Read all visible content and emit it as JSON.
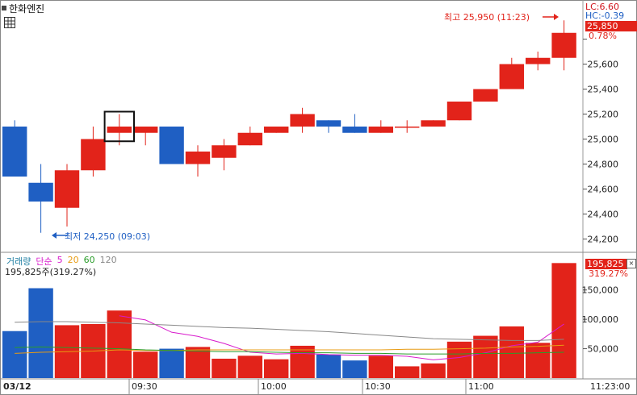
{
  "window": {
    "stock_name": "한화엔진",
    "lc_label": "LC:6.60",
    "hc_label": "HC:-0.39",
    "current_price": "25,850",
    "current_pct": "0.78%",
    "high_annotation": "최고 25,950 (11:23)",
    "low_annotation": "최저 24,250 (09:03)"
  },
  "volume_panel": {
    "legend": {
      "name": "거래량",
      "ma_label": "단순",
      "periods": [
        "5",
        "20",
        "60",
        "120"
      ]
    },
    "info": "195,825주(319.27%)",
    "current_volume": "195,825",
    "current_pct": "319.27%"
  },
  "time_axis": {
    "date": "03/12",
    "labels": [
      "09:30",
      "10:00",
      "10:30",
      "11:00"
    ],
    "current_time": "11:23:00"
  },
  "colors": {
    "up": "#e2231a",
    "down": "#1f5fc3",
    "ma5": "#d81bcc",
    "ma20": "#e89b12",
    "ma60": "#2a9d2a",
    "ma120": "#888888"
  },
  "chart_data": [
    {
      "type": "candlestick",
      "ylim": [
        24100,
        26100
      ],
      "yticks": [
        24200,
        24400,
        24600,
        24800,
        25000,
        25200,
        25400,
        25600,
        25800
      ],
      "ytick_labels": [
        "24,200",
        "24,400",
        "24,600",
        "24,800",
        "25,000",
        "25,200",
        "25,400",
        "25,600",
        "25,800"
      ],
      "candles": [
        {
          "o": 25100,
          "h": 25150,
          "l": 24700,
          "c": 24700
        },
        {
          "o": 24650,
          "h": 24800,
          "l": 24250,
          "c": 24500
        },
        {
          "o": 24450,
          "h": 24800,
          "l": 24300,
          "c": 24750
        },
        {
          "o": 24750,
          "h": 25100,
          "l": 24700,
          "c": 25000
        },
        {
          "o": 25050,
          "h": 25200,
          "l": 24950,
          "c": 25100
        },
        {
          "o": 25050,
          "h": 25100,
          "l": 24950,
          "c": 25100
        },
        {
          "o": 25100,
          "h": 25100,
          "l": 24800,
          "c": 24800
        },
        {
          "o": 24800,
          "h": 24950,
          "l": 24700,
          "c": 24900
        },
        {
          "o": 24850,
          "h": 25000,
          "l": 24750,
          "c": 24950
        },
        {
          "o": 24950,
          "h": 25100,
          "l": 24950,
          "c": 25050
        },
        {
          "o": 25050,
          "h": 25100,
          "l": 25050,
          "c": 25100
        },
        {
          "o": 25100,
          "h": 25250,
          "l": 25050,
          "c": 25200
        },
        {
          "o": 25150,
          "h": 25150,
          "l": 25050,
          "c": 25100
        },
        {
          "o": 25100,
          "h": 25200,
          "l": 25050,
          "c": 25050
        },
        {
          "o": 25050,
          "h": 25150,
          "l": 25050,
          "c": 25100
        },
        {
          "o": 25100,
          "h": 25150,
          "l": 25050,
          "c": 25100
        },
        {
          "o": 25100,
          "h": 25150,
          "l": 25100,
          "c": 25150
        },
        {
          "o": 25150,
          "h": 25300,
          "l": 25150,
          "c": 25300
        },
        {
          "o": 25300,
          "h": 25400,
          "l": 25300,
          "c": 25400
        },
        {
          "o": 25400,
          "h": 25650,
          "l": 25400,
          "c": 25600
        },
        {
          "o": 25600,
          "h": 25700,
          "l": 25550,
          "c": 25650
        },
        {
          "o": 25650,
          "h": 25950,
          "l": 25550,
          "c": 25850
        }
      ]
    },
    {
      "type": "bar",
      "ylim": [
        0,
        210000
      ],
      "yticks": [
        50000,
        100000,
        150000
      ],
      "ytick_labels": [
        "50,000",
        "100,000",
        "150,000"
      ],
      "values": [
        80000,
        153000,
        90000,
        92000,
        115000,
        45000,
        50000,
        53000,
        33000,
        38000,
        32000,
        55000,
        40000,
        30000,
        38000,
        20000,
        25000,
        62000,
        72000,
        88000,
        60000,
        195825
      ],
      "series": [
        {
          "name": "5",
          "values": [
            null,
            null,
            null,
            null,
            106000,
            99000,
            78000,
            71000,
            59000,
            44000,
            41000,
            42000,
            40000,
            39000,
            39000,
            37000,
            31000,
            35000,
            43000,
            55000,
            61000,
            92000
          ]
        },
        {
          "name": "20",
          "values": [
            42000,
            44000,
            45000,
            46000,
            48000,
            47000,
            47000,
            48000,
            48000,
            48000,
            48000,
            48000,
            48000,
            48000,
            48000,
            49000,
            49000,
            50000,
            51000,
            53000,
            54000,
            56000
          ]
        },
        {
          "name": "60",
          "values": [
            52000,
            53000,
            52000,
            51000,
            50000,
            48000,
            47000,
            46000,
            45000,
            45000,
            44000,
            43000,
            43000,
            42000,
            42000,
            41000,
            41000,
            41000,
            42000,
            42000,
            43000,
            44000
          ]
        },
        {
          "name": "120",
          "values": [
            95000,
            96000,
            96000,
            95000,
            94000,
            92000,
            90000,
            88000,
            86000,
            85000,
            83000,
            81000,
            79000,
            76000,
            73000,
            70000,
            67000,
            66000,
            65000,
            64000,
            64000,
            66000
          ]
        }
      ]
    }
  ]
}
